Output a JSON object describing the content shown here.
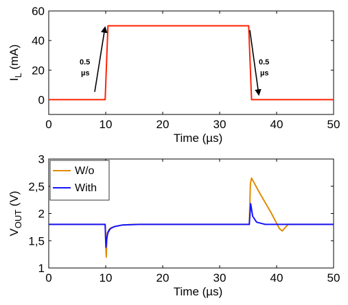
{
  "colors": {
    "il": "#ff2200",
    "without": "#e08a00",
    "with": "#1414ff",
    "arrow": "#000000"
  },
  "chart_data": [
    {
      "type": "line",
      "xlabel": "Time (µs)",
      "ylabel": "I",
      "ylabel_sub": "L",
      "ylabel_unit": " (mA)",
      "xlim": [
        0,
        50
      ],
      "ylim": [
        -10,
        60
      ],
      "xticks": [
        "0",
        "10",
        "20",
        "30",
        "40",
        "50"
      ],
      "yticks": [
        "0",
        "20",
        "40",
        "60"
      ],
      "series": [
        {
          "x": [
            0,
            9.9,
            10.4,
            35.1,
            35.6,
            50
          ],
          "y": [
            0,
            0,
            50,
            50,
            0,
            0
          ]
        }
      ],
      "annotations": [
        {
          "line1": "0.5",
          "line2": "µs"
        },
        {
          "line1": "0.5",
          "line2": "µs"
        }
      ]
    },
    {
      "type": "line",
      "xlabel": "Time (µs)",
      "ylabel": "V",
      "ylabel_sub": "OUT",
      "ylabel_unit": " (V)",
      "xlim": [
        0,
        50
      ],
      "ylim": [
        1,
        3
      ],
      "xticks": [
        "0",
        "10",
        "20",
        "30",
        "40",
        "50"
      ],
      "yticks": [
        "1",
        "1,5",
        "2",
        "2,5",
        "3"
      ],
      "series": [
        {
          "name": "W/o",
          "x": [
            0,
            9.9,
            10.0,
            10.1,
            10.2,
            10.3,
            10.6,
            11,
            12,
            13,
            15,
            20,
            30,
            35.2,
            35.4,
            35.6,
            37,
            39,
            40.5,
            41,
            42,
            50
          ],
          "y": [
            1.8,
            1.8,
            1.45,
            1.2,
            1.55,
            1.65,
            1.71,
            1.74,
            1.77,
            1.79,
            1.8,
            1.8,
            1.8,
            1.8,
            2.55,
            2.65,
            2.38,
            2.02,
            1.72,
            1.68,
            1.8,
            1.8
          ]
        },
        {
          "name": "With",
          "x": [
            0,
            9.9,
            10.05,
            10.2,
            10.4,
            10.8,
            11.5,
            13,
            16,
            20,
            35.2,
            35.45,
            35.8,
            36.5,
            38,
            50
          ],
          "y": [
            1.8,
            1.8,
            1.38,
            1.55,
            1.65,
            1.72,
            1.76,
            1.79,
            1.8,
            1.8,
            1.8,
            2.18,
            1.95,
            1.84,
            1.8,
            1.8
          ]
        }
      ]
    }
  ]
}
